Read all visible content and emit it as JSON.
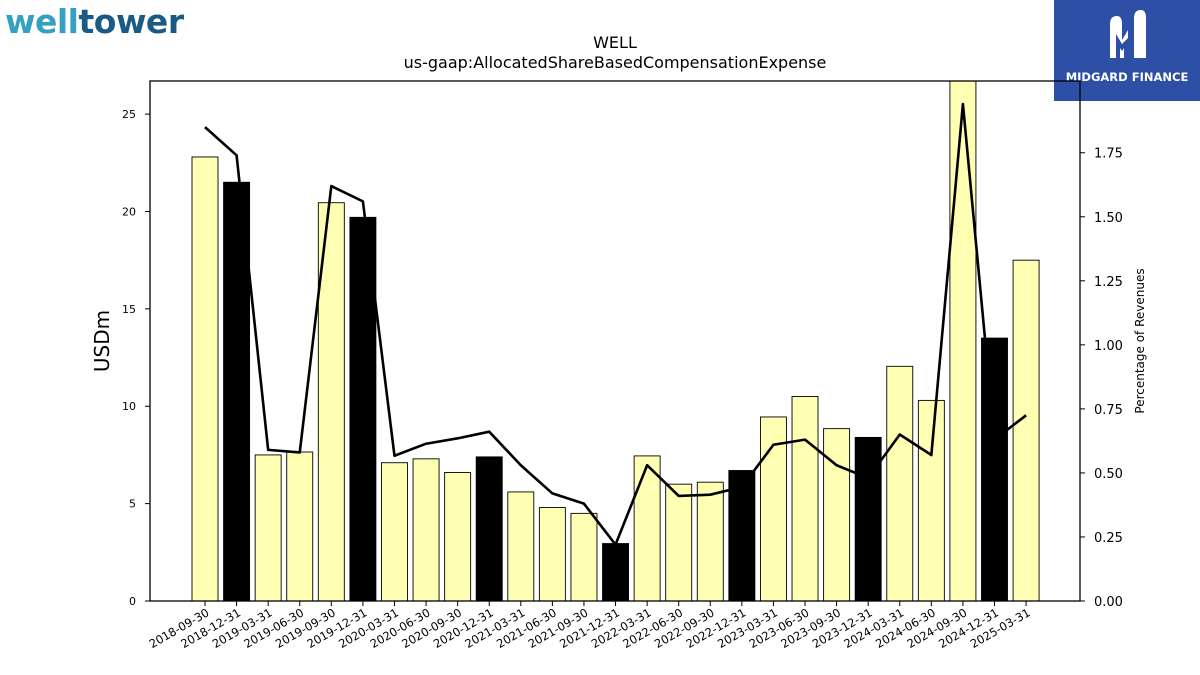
{
  "logos": {
    "left_part1": "well",
    "left_part2": "tower",
    "right_brand": "MIDGARD FINANCE"
  },
  "chart_data": {
    "type": "bar",
    "title": "WELL",
    "subtitle": "us-gaap:AllocatedShareBasedCompensationExpense",
    "ylabel": "USDm",
    "y2label": "Percentage of Revenues",
    "ylim": [
      0,
      26.7
    ],
    "y2lim": [
      0,
      2.03
    ],
    "yticks": [
      0,
      5,
      10,
      15,
      20,
      25
    ],
    "y2ticks": [
      "0.00",
      "0.25",
      "0.50",
      "0.75",
      "1.00",
      "1.25",
      "1.50",
      "1.75"
    ],
    "categories": [
      "2018-09-30",
      "2018-12-31",
      "2019-03-31",
      "2019-06-30",
      "2019-09-30",
      "2019-12-31",
      "2020-03-31",
      "2020-06-30",
      "2020-09-30",
      "2020-12-31",
      "2021-03-31",
      "2021-06-30",
      "2021-09-30",
      "2021-12-31",
      "2022-03-31",
      "2022-06-30",
      "2022-09-30",
      "2022-12-31",
      "2023-03-31",
      "2023-06-30",
      "2023-09-30",
      "2023-12-31",
      "2024-03-31",
      "2024-06-30",
      "2024-09-30",
      "2024-12-31",
      "2025-03-31"
    ],
    "series": [
      {
        "type": "bar",
        "values": [
          22.8,
          21.5,
          7.5,
          7.65,
          20.45,
          19.7,
          7.1,
          7.3,
          6.6,
          7.4,
          5.6,
          4.8,
          4.5,
          2.95,
          7.45,
          6.0,
          6.1,
          6.7,
          9.45,
          10.5,
          8.85,
          8.4,
          12.05,
          10.3,
          26.7,
          13.5,
          17.5
        ],
        "colors": [
          "#ffffb3",
          "#000000",
          "#ffffb3",
          "#ffffb3",
          "#ffffb3",
          "#000000",
          "#ffffb3",
          "#ffffb3",
          "#ffffb3",
          "#000000",
          "#ffffb3",
          "#ffffb3",
          "#ffffb3",
          "#000000",
          "#ffffb3",
          "#ffffb3",
          "#ffffb3",
          "#000000",
          "#ffffb3",
          "#ffffb3",
          "#ffffb3",
          "#000000",
          "#ffffb3",
          "#ffffb3",
          "#ffffb3",
          "#000000",
          "#ffffb3"
        ]
      },
      {
        "type": "line",
        "axis": "right",
        "color": "#000000",
        "values": [
          1.85,
          1.74,
          0.59,
          0.58,
          1.62,
          1.56,
          0.567,
          0.614,
          0.635,
          0.661,
          0.53,
          0.42,
          0.38,
          0.22,
          0.53,
          0.41,
          0.415,
          0.445,
          0.61,
          0.63,
          0.53,
          0.48,
          0.65,
          0.57,
          1.94,
          0.63,
          0.725
        ]
      }
    ],
    "grid": false,
    "legend": "none"
  }
}
